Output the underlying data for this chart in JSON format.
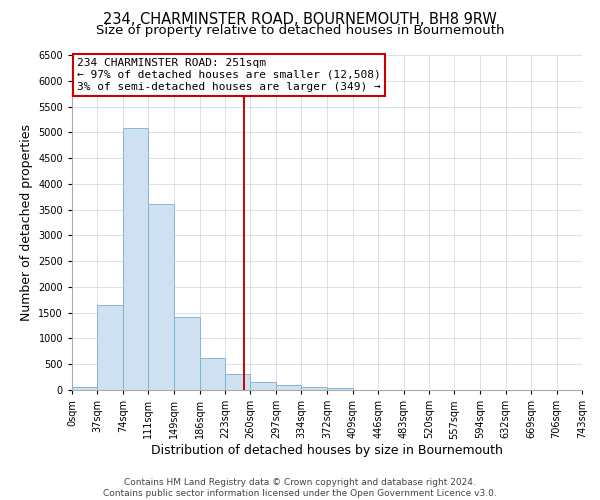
{
  "title": "234, CHARMINSTER ROAD, BOURNEMOUTH, BH8 9RW",
  "subtitle": "Size of property relative to detached houses in Bournemouth",
  "xlabel": "Distribution of detached houses by size in Bournemouth",
  "ylabel": "Number of detached properties",
  "bin_edges": [
    0,
    37,
    74,
    111,
    149,
    186,
    223,
    260,
    297,
    334,
    372,
    409,
    446,
    483,
    520,
    557,
    594,
    632,
    669,
    706,
    743
  ],
  "bin_counts": [
    60,
    1650,
    5080,
    3600,
    1420,
    620,
    310,
    150,
    100,
    50,
    30,
    0,
    0,
    0,
    0,
    0,
    0,
    0,
    0,
    0
  ],
  "bar_color": "#cfe0f0",
  "bar_edge_color": "#7ab0d4",
  "property_line_x": 251,
  "property_line_color": "#cc0000",
  "annotation_title": "234 CHARMINSTER ROAD: 251sqm",
  "annotation_line1": "← 97% of detached houses are smaller (12,508)",
  "annotation_line2": "3% of semi-detached houses are larger (349) →",
  "annotation_box_edge": "#cc0000",
  "ylim": [
    0,
    6500
  ],
  "xlim": [
    0,
    743
  ],
  "tick_labels": [
    "0sqm",
    "37sqm",
    "74sqm",
    "111sqm",
    "149sqm",
    "186sqm",
    "223sqm",
    "260sqm",
    "297sqm",
    "334sqm",
    "372sqm",
    "409sqm",
    "446sqm",
    "483sqm",
    "520sqm",
    "557sqm",
    "594sqm",
    "632sqm",
    "669sqm",
    "706sqm",
    "743sqm"
  ],
  "yticks": [
    0,
    500,
    1000,
    1500,
    2000,
    2500,
    3000,
    3500,
    4000,
    4500,
    5000,
    5500,
    6000,
    6500
  ],
  "footer_line1": "Contains HM Land Registry data © Crown copyright and database right 2024.",
  "footer_line2": "Contains public sector information licensed under the Open Government Licence v3.0.",
  "title_fontsize": 10.5,
  "subtitle_fontsize": 9.5,
  "axis_label_fontsize": 9,
  "tick_fontsize": 7,
  "annotation_fontsize": 8,
  "footer_fontsize": 6.5,
  "grid_color": "#d4dae8"
}
